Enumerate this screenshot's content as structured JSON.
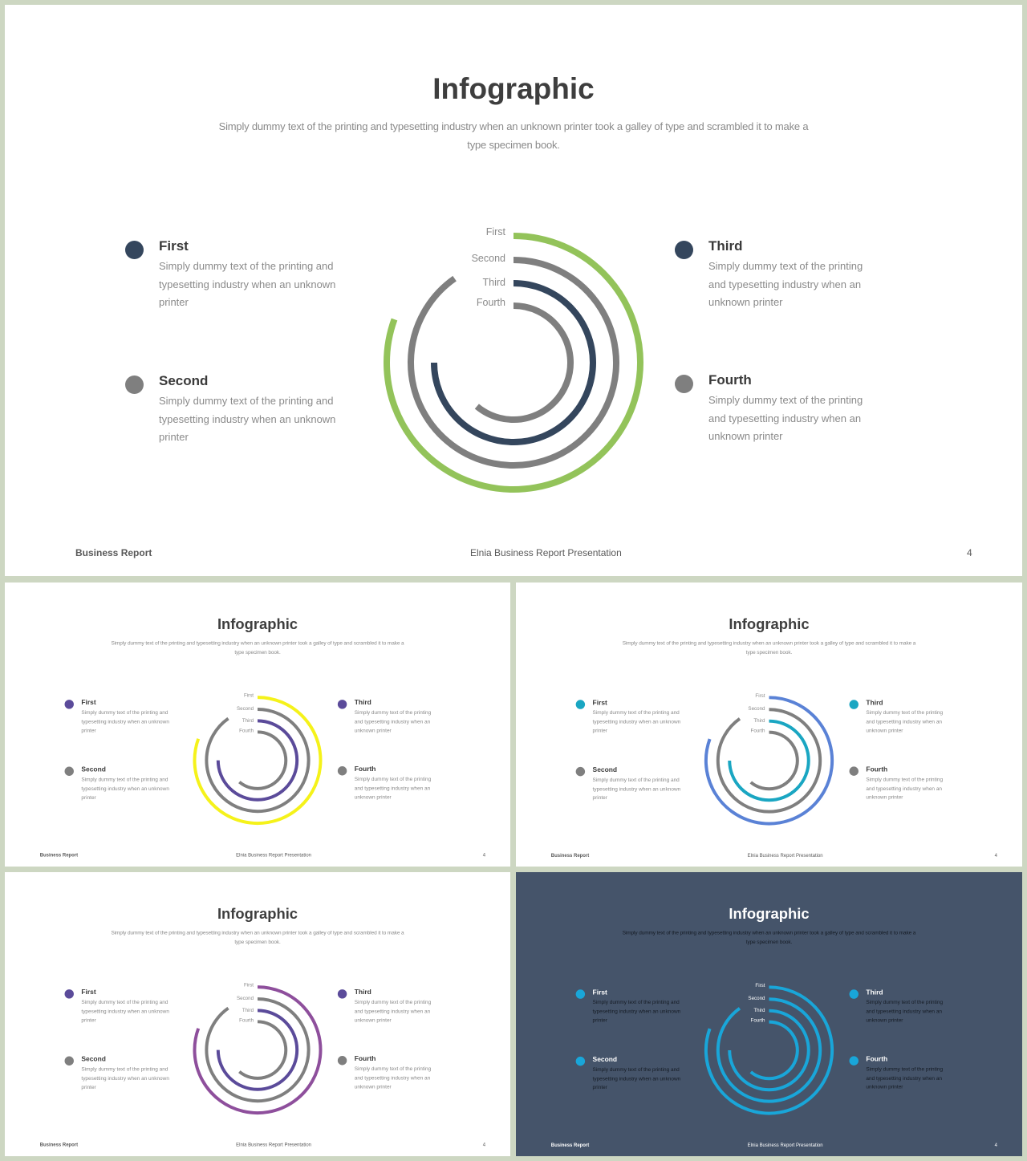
{
  "content": {
    "title": "Infographic",
    "subtitle": "Simply dummy text  of the printing and typesetting industry when an unknown printer took a galley of type  and scrambled it to make a type specimen book.",
    "ring_labels": [
      "First",
      "Second",
      "Third",
      "Fourth"
    ],
    "items": [
      {
        "title": "First",
        "desc": "Simply dummy text  of the printing and typesetting industry when an unknown printer"
      },
      {
        "title": "Second",
        "desc": "Simply dummy text  of the printing and typesetting industry when an unknown printer"
      },
      {
        "title": "Third",
        "desc": "Simply dummy text  of the printing and typesetting industry when an unknown printer"
      },
      {
        "title": "Fourth",
        "desc": "Simply dummy text  of the printing and typesetting industry when an unknown printer"
      }
    ],
    "footer": {
      "left": "Business Report",
      "center": "Elnia Business Report Presentation",
      "page": "4"
    }
  },
  "slides": [
    {
      "variant": "green",
      "dark": false,
      "ring_colors": [
        "#93c35a",
        "#7f7f7f",
        "#34465d",
        "#7f7f7f"
      ],
      "dot_colors": [
        "#34465d",
        "#7f7f7f",
        "#34465d",
        "#7f7f7f"
      ]
    },
    {
      "variant": "yellow",
      "dark": false,
      "ring_colors": [
        "#f5f21a",
        "#7f7f7f",
        "#5b4b9a",
        "#7f7f7f"
      ],
      "dot_colors": [
        "#5b4b9a",
        "#7f7f7f",
        "#5b4b9a",
        "#7f7f7f"
      ]
    },
    {
      "variant": "blue",
      "dark": false,
      "ring_colors": [
        "#5a82d6",
        "#7f7f7f",
        "#1aa6c2",
        "#7f7f7f"
      ],
      "dot_colors": [
        "#1aa6c2",
        "#7f7f7f",
        "#1aa6c2",
        "#7f7f7f"
      ]
    },
    {
      "variant": "purple",
      "dark": false,
      "ring_colors": [
        "#8e4f9c",
        "#7f7f7f",
        "#5b4b9a",
        "#7f7f7f"
      ],
      "dot_colors": [
        "#5b4b9a",
        "#7f7f7f",
        "#5b4b9a",
        "#7f7f7f"
      ]
    },
    {
      "variant": "dark-cyan",
      "dark": true,
      "ring_colors": [
        "#19a6d9",
        "#19a6d9",
        "#19a6d9",
        "#19a6d9"
      ],
      "dot_colors": [
        "#19a6d9",
        "#19a6d9",
        "#19a6d9",
        "#19a6d9"
      ]
    }
  ]
}
